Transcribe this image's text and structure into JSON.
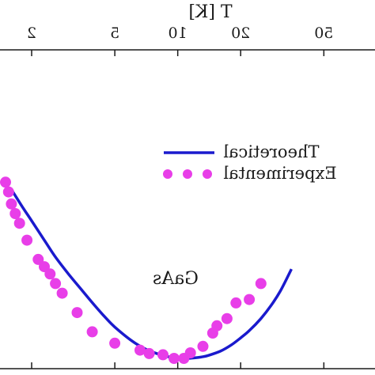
{
  "chart_data": {
    "type": "line",
    "xlabel": "T [K]",
    "xscale": "log",
    "xlim": [
      1.6,
      35
    ],
    "ylim": [
      0,
      1
    ],
    "x_ticks": [
      2,
      5,
      10,
      20,
      50
    ],
    "x_tick_labels": [
      "2",
      "5",
      "10",
      "20",
      "50"
    ],
    "grid": false,
    "legend_position": "top-right",
    "annotation": "GaAs",
    "colors": {
      "theoretical": "#1a1acd",
      "experimental": "#e83ee8",
      "axis": "#1a1a1a"
    },
    "series": [
      {
        "name": "Theoretical",
        "style": "line",
        "x": [
          1.6,
          1.8,
          2.0,
          2.3,
          2.6,
          3.0,
          3.5,
          4.0,
          4.5,
          5.0,
          6.0,
          7.0,
          8.0,
          9.0,
          10.0,
          11.0,
          12.0,
          13.0,
          14.0,
          16.0,
          18.0,
          20.0,
          22.0,
          25.0,
          28.0,
          31.0,
          35.0
        ],
        "y": [
          0.7,
          0.63,
          0.57,
          0.49,
          0.42,
          0.35,
          0.28,
          0.22,
          0.17,
          0.13,
          0.074,
          0.039,
          0.019,
          0.007,
          0.002,
          0.0,
          0.002,
          0.006,
          0.012,
          0.03,
          0.055,
          0.085,
          0.115,
          0.165,
          0.22,
          0.28,
          0.37
        ]
      },
      {
        "name": "Experimental",
        "style": "markers",
        "x": [
          1.5,
          1.55,
          1.6,
          1.67,
          1.75,
          1.9,
          2.15,
          2.3,
          2.45,
          2.6,
          2.8,
          3.3,
          3.9,
          5.0,
          6.6,
          7.3,
          8.5,
          9.6,
          10.7,
          11.5,
          13.2,
          14.7,
          15.4,
          17.2,
          19.0,
          22.0,
          25.0
        ],
        "y": [
          0.73,
          0.69,
          0.64,
          0.6,
          0.56,
          0.49,
          0.41,
          0.38,
          0.35,
          0.31,
          0.27,
          0.19,
          0.11,
          0.063,
          0.034,
          0.02,
          0.015,
          0.0,
          0.0,
          0.023,
          0.05,
          0.105,
          0.135,
          0.165,
          0.23,
          0.244,
          0.31
        ]
      }
    ]
  }
}
